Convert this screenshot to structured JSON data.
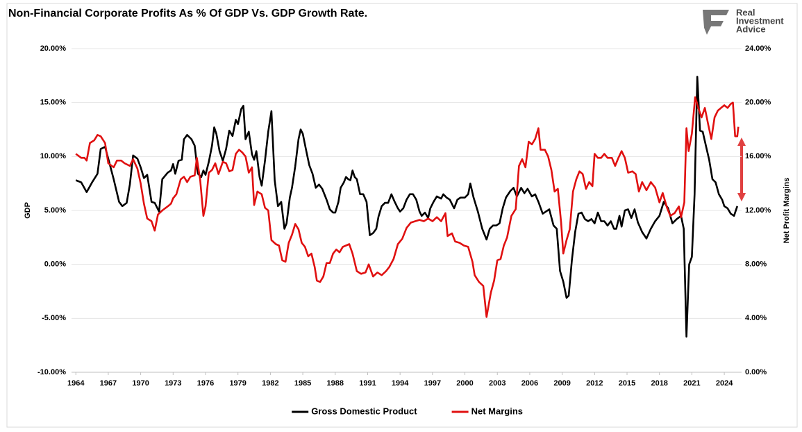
{
  "logo": [
    "Real",
    "Investment",
    "Advice"
  ],
  "chart_data": {
    "type": "line",
    "title": "Non-Financial Corporate Profits As % Of GDP Vs. GDP Growth Rate.",
    "y_label": "GDP",
    "y2_label": "Net Profit Margins",
    "xlim": [
      1963.6,
      2025.6
    ],
    "xticks": [
      1964,
      1967,
      1970,
      1973,
      1976,
      1979,
      1982,
      1985,
      1988,
      1991,
      1994,
      1997,
      2000,
      2003,
      2006,
      2009,
      2012,
      2015,
      2018,
      2021,
      2024
    ],
    "ylim": [
      -10,
      20
    ],
    "yticks": [
      {
        "value": -10,
        "label": "-10.00%"
      },
      {
        "value": -5,
        "label": "-5.00%"
      },
      {
        "value": 0,
        "label": "0.00%"
      },
      {
        "value": 5,
        "label": "5.00%"
      },
      {
        "value": 10,
        "label": "10.00%"
      },
      {
        "value": 15,
        "label": "15.00%"
      },
      {
        "value": 20,
        "label": "20.00%"
      }
    ],
    "y2lim": [
      0,
      24
    ],
    "y2ticks": [
      {
        "value": 0,
        "label": "0.00%"
      },
      {
        "value": 4,
        "label": "4.00%"
      },
      {
        "value": 8,
        "label": "8.00%"
      },
      {
        "value": 12,
        "label": "12.00%"
      },
      {
        "value": 16,
        "label": "16.00%"
      },
      {
        "value": 20,
        "label": "20.00%"
      },
      {
        "value": 24,
        "label": "24.00%"
      }
    ],
    "grid": true,
    "legend": "bottom",
    "series": [
      {
        "name": "Gross Domestic Product",
        "color": "#000000",
        "axis": "y",
        "x": [
          1964,
          1964.5,
          1965,
          1965.5,
          1966,
          1966.3,
          1966.7,
          1967,
          1967.5,
          1968,
          1968.3,
          1968.7,
          1969,
          1969.3,
          1969.7,
          1970,
          1970.3,
          1970.6,
          1971,
          1971.3,
          1971.7,
          1972,
          1972.5,
          1972.8,
          1973,
          1973.2,
          1973.5,
          1973.8,
          1974,
          1974.3,
          1974.7,
          1975,
          1975.3,
          1975.6,
          1975.8,
          1976,
          1976.3,
          1976.6,
          1976.8,
          1977,
          1977.3,
          1977.6,
          1977.9,
          1978.2,
          1978.5,
          1978.8,
          1979,
          1979.3,
          1979.5,
          1979.7,
          1980,
          1980.3,
          1980.5,
          1980.7,
          1981,
          1981.2,
          1981.5,
          1981.8,
          1982.1,
          1982.4,
          1982.7,
          1983,
          1983.3,
          1983.5,
          1983.8,
          1984,
          1984.3,
          1984.6,
          1984.8,
          1985,
          1985.3,
          1985.6,
          1985.9,
          1986.2,
          1986.5,
          1986.8,
          1987.2,
          1987.5,
          1987.8,
          1988,
          1988.3,
          1988.5,
          1988.8,
          1989,
          1989.2,
          1989.4,
          1989.6,
          1989.8,
          1990,
          1990.3,
          1990.6,
          1990.9,
          1991.2,
          1991.5,
          1991.8,
          1992,
          1992.3,
          1992.6,
          1992.9,
          1993.2,
          1993.5,
          1993.8,
          1994,
          1994.3,
          1994.6,
          1994.9,
          1995.2,
          1995.5,
          1995.8,
          1996,
          1996.3,
          1996.6,
          1996.8,
          1997.1,
          1997.4,
          1997.8,
          1998,
          1998.3,
          1998.6,
          1999,
          1999.3,
          1999.6,
          2000,
          2000.3,
          2000.5,
          2000.8,
          2001.2,
          2001.6,
          2002,
          2002.3,
          2002.6,
          2002.9,
          2003.2,
          2003.5,
          2003.8,
          2004.2,
          2004.5,
          2004.8,
          2005.2,
          2005.5,
          2005.8,
          2006.2,
          2006.5,
          2006.8,
          2007.2,
          2007.5,
          2007.8,
          2008.2,
          2008.5,
          2008.8,
          2009.1,
          2009.4,
          2009.6,
          2009.9,
          2010.2,
          2010.5,
          2010.8,
          2011.1,
          2011.4,
          2011.7,
          2012,
          2012.3,
          2012.6,
          2012.9,
          2013.2,
          2013.5,
          2013.8,
          2014,
          2014.3,
          2014.5,
          2014.8,
          2015.1,
          2015.4,
          2015.7,
          2016,
          2016.4,
          2016.8,
          2017.2,
          2017.6,
          2018,
          2018.4,
          2018.8,
          2019.2,
          2019.6,
          2020,
          2020.25,
          2020.5,
          2020.75,
          2021,
          2021.25,
          2021.5,
          2021.75,
          2022,
          2022.3,
          2022.6,
          2022.9,
          2023.2,
          2023.5,
          2023.8,
          2024,
          2024.3,
          2024.6,
          2024.9,
          2025.2
        ],
        "values": [
          7.8,
          7.6,
          6.7,
          7.6,
          8.4,
          10.7,
          10.9,
          9.8,
          7.9,
          5.8,
          5.4,
          5.7,
          7.4,
          10.1,
          9.8,
          9.0,
          8.0,
          8.3,
          5.8,
          5.7,
          4.9,
          7.9,
          8.5,
          8.7,
          9.3,
          8.4,
          9.6,
          9.7,
          11.6,
          12.0,
          11.6,
          11.0,
          8.4,
          8.1,
          8.7,
          8.3,
          9.5,
          11.0,
          12.7,
          12.1,
          10.5,
          9.6,
          10.7,
          12.4,
          11.9,
          13.4,
          13.0,
          14.4,
          14.7,
          11.6,
          12.3,
          10.2,
          9.7,
          10.5,
          8.1,
          7.3,
          9.6,
          12.3,
          14.2,
          7.8,
          5.4,
          5.8,
          3.3,
          3.8,
          6.2,
          7.1,
          9.1,
          11.6,
          12.5,
          12.1,
          10.6,
          9.2,
          8.4,
          7.1,
          7.4,
          7.0,
          6.0,
          5.1,
          4.8,
          4.8,
          5.8,
          7.1,
          7.6,
          8.1,
          7.9,
          7.8,
          8.7,
          8.1,
          7.9,
          6.5,
          6.5,
          5.8,
          2.7,
          2.9,
          3.3,
          4.4,
          5.4,
          5.7,
          5.7,
          6.5,
          5.8,
          5.2,
          4.9,
          5.2,
          6.0,
          6.5,
          6.5,
          6.0,
          4.9,
          4.5,
          4.8,
          4.3,
          5.2,
          5.8,
          6.3,
          6.1,
          6.5,
          6.2,
          6.0,
          5.2,
          6.0,
          6.2,
          6.2,
          6.5,
          7.5,
          6.2,
          4.9,
          3.3,
          2.3,
          3.3,
          3.6,
          3.6,
          3.8,
          5.2,
          6.2,
          6.8,
          7.1,
          6.3,
          7.1,
          6.6,
          7.0,
          6.3,
          6.5,
          5.8,
          4.7,
          4.9,
          5.1,
          3.6,
          3.3,
          -0.6,
          -1.6,
          -3.1,
          -2.9,
          0.4,
          3.0,
          4.7,
          4.8,
          4.2,
          4.0,
          4.2,
          3.8,
          4.8,
          4.0,
          4.0,
          3.6,
          4.0,
          3.3,
          3.3,
          4.5,
          3.5,
          5.0,
          5.1,
          4.3,
          5.1,
          3.9,
          3.0,
          2.4,
          3.3,
          4.0,
          4.5,
          5.8,
          5.2,
          3.8,
          4.2,
          4.5,
          3.3,
          -6.7,
          0.0,
          0.7,
          6.5,
          17.4,
          12.4,
          12.3,
          11.0,
          9.7,
          7.9,
          7.6,
          6.5,
          6.0,
          5.4,
          5.2,
          4.7,
          4.5,
          5.4
        ]
      },
      {
        "name": "Net Margins",
        "color": "#e01010",
        "axis": "y2",
        "x": [
          1964,
          1964.5,
          1964.8,
          1965,
          1965.3,
          1965.7,
          1966,
          1966.3,
          1966.7,
          1967,
          1967.5,
          1967.8,
          1968.2,
          1968.5,
          1969,
          1969.3,
          1969.7,
          1970,
          1970.3,
          1970.6,
          1971,
          1971.3,
          1971.6,
          1972,
          1972.5,
          1972.8,
          1973,
          1973.3,
          1973.7,
          1974,
          1974.3,
          1974.6,
          1975,
          1975.2,
          1975.5,
          1975.8,
          1976,
          1976.3,
          1976.6,
          1976.9,
          1977.2,
          1977.6,
          1977.9,
          1978.2,
          1978.5,
          1978.8,
          1979.1,
          1979.4,
          1979.7,
          1980,
          1980.3,
          1980.5,
          1980.8,
          1981.2,
          1981.5,
          1981.8,
          1982.1,
          1982.5,
          1982.8,
          1983.1,
          1983.4,
          1983.7,
          1984,
          1984.3,
          1984.6,
          1984.9,
          1985.2,
          1985.5,
          1985.8,
          1986.1,
          1986.3,
          1986.6,
          1986.9,
          1987.2,
          1987.5,
          1987.8,
          1988.1,
          1988.4,
          1988.7,
          1989,
          1989.3,
          1989.6,
          1990,
          1990.4,
          1990.8,
          1991.1,
          1991.5,
          1991.9,
          1992.3,
          1992.7,
          1993,
          1993.4,
          1993.8,
          1994.2,
          1994.6,
          1995,
          1995.4,
          1995.8,
          1996.2,
          1996.6,
          1997,
          1997.4,
          1997.8,
          1998.2,
          1998.4,
          1998.8,
          1999.1,
          1999.5,
          1999.9,
          2000.3,
          2000.7,
          2000.9,
          2001.3,
          2001.7,
          2002,
          2002.4,
          2002.7,
          2003,
          2003.3,
          2003.6,
          2003.9,
          2004.3,
          2004.7,
          2005,
          2005.3,
          2005.6,
          2005.9,
          2006.2,
          2006.5,
          2006.8,
          2007,
          2007.4,
          2007.7,
          2008,
          2008.3,
          2008.6,
          2008.9,
          2009.1,
          2009.4,
          2009.7,
          2010,
          2010.3,
          2010.6,
          2010.9,
          2011.2,
          2011.5,
          2011.8,
          2012,
          2012.3,
          2012.6,
          2012.9,
          2013.2,
          2013.6,
          2013.9,
          2014.2,
          2014.5,
          2014.8,
          2015.1,
          2015.5,
          2015.8,
          2016.1,
          2016.4,
          2016.8,
          2017.2,
          2017.6,
          2018,
          2018.3,
          2018.7,
          2019,
          2019.4,
          2019.8,
          2020,
          2020.3,
          2020.5,
          2020.7,
          2021,
          2021.3,
          2021.6,
          2021.9,
          2022.2,
          2022.5,
          2022.8,
          2023.1,
          2023.4,
          2023.7,
          2024,
          2024.3,
          2024.6,
          2024.8,
          2025,
          2025.2,
          2025.3
        ],
        "values": [
          16.2,
          15.9,
          15.9,
          15.7,
          17.0,
          17.2,
          17.6,
          17.5,
          17.0,
          15.5,
          15.2,
          15.7,
          15.7,
          15.5,
          15.3,
          15.8,
          15.1,
          14.0,
          12.5,
          11.4,
          11.2,
          10.5,
          11.7,
          12.0,
          12.3,
          12.5,
          12.9,
          13.2,
          14.3,
          14.5,
          14.1,
          14.5,
          14.6,
          15.9,
          14.3,
          11.6,
          12.3,
          14.8,
          15.0,
          15.5,
          14.7,
          15.6,
          15.5,
          14.9,
          15.0,
          16.2,
          16.5,
          16.3,
          16.0,
          14.8,
          15.2,
          12.4,
          13.4,
          13.2,
          12.2,
          12.0,
          9.8,
          9.5,
          9.4,
          8.3,
          8.2,
          9.6,
          10.2,
          11.0,
          10.6,
          9.6,
          9.3,
          8.6,
          8.8,
          7.8,
          6.8,
          6.7,
          7.1,
          8.1,
          8.1,
          8.8,
          9.1,
          8.9,
          9.3,
          9.4,
          9.5,
          8.8,
          7.5,
          7.3,
          7.4,
          8.0,
          7.1,
          7.4,
          7.2,
          7.5,
          7.8,
          8.4,
          9.5,
          9.9,
          10.7,
          11.1,
          11.2,
          11.3,
          11.2,
          11.4,
          11.2,
          11.5,
          11.2,
          11.8,
          10.1,
          10.3,
          9.7,
          9.6,
          9.4,
          9.3,
          8.2,
          7.2,
          6.7,
          6.4,
          4.1,
          5.9,
          6.8,
          8.3,
          8.4,
          9.4,
          10.0,
          11.6,
          12.1,
          15.3,
          15.8,
          15.2,
          17.1,
          16.9,
          17.3,
          18.1,
          16.5,
          16.5,
          16.0,
          15.0,
          13.4,
          13.6,
          11.1,
          8.8,
          9.8,
          10.6,
          13.4,
          14.3,
          14.9,
          14.7,
          13.6,
          14.1,
          13.8,
          16.2,
          15.9,
          15.9,
          16.2,
          15.9,
          15.9,
          15.3,
          15.9,
          16.4,
          15.9,
          14.8,
          14.9,
          14.7,
          13.4,
          14.1,
          13.5,
          14.1,
          13.7,
          12.6,
          13.3,
          12.2,
          11.6,
          11.8,
          12.3,
          11.5,
          12.6,
          18.1,
          16.4,
          17.7,
          20.4,
          19.6,
          18.9,
          19.6,
          18.4,
          17.3,
          18.9,
          19.4,
          19.6,
          19.8,
          19.6,
          19.9,
          20.0,
          17.5,
          17.5,
          18.2
        ]
      }
    ]
  }
}
